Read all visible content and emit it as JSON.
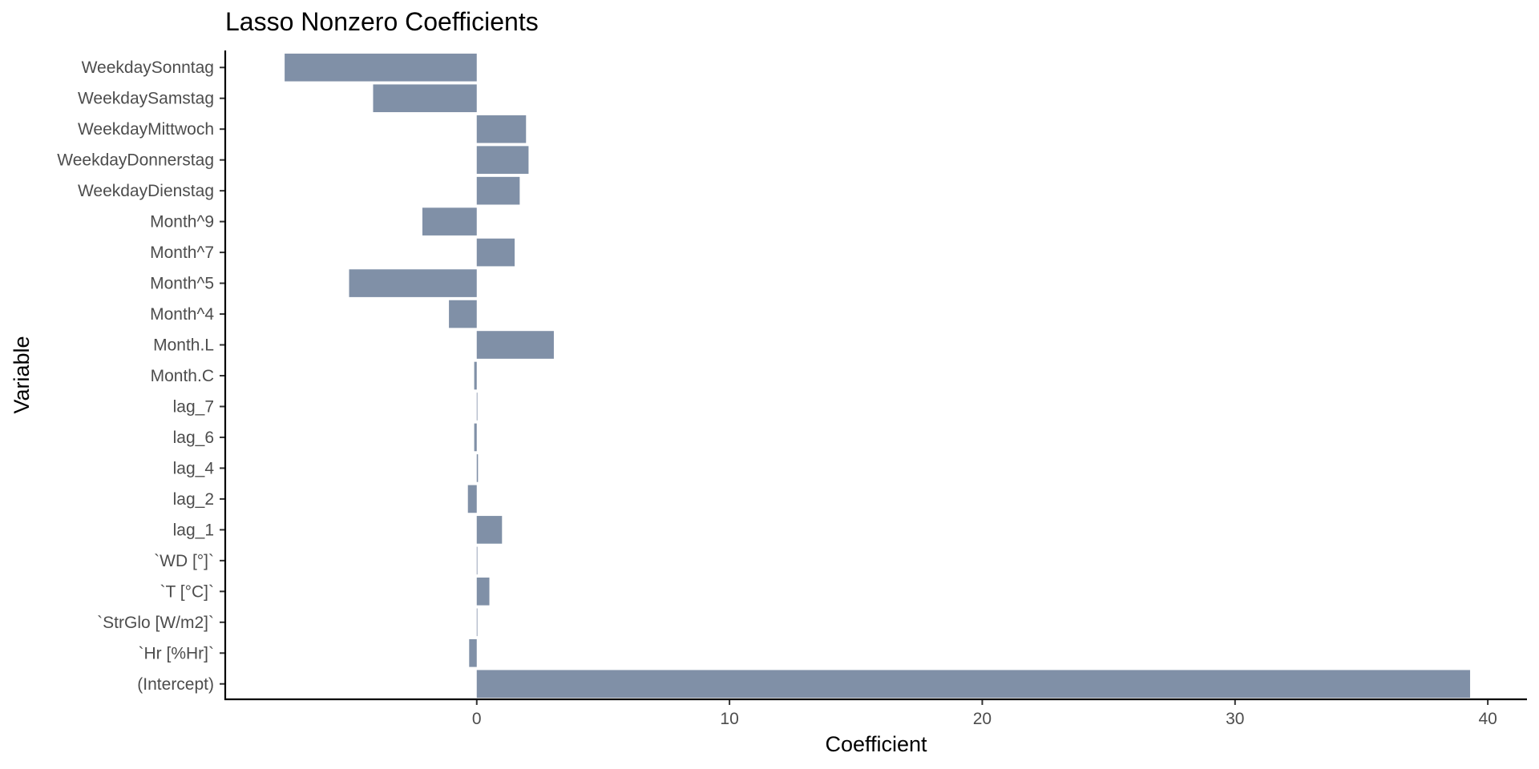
{
  "chart_data": {
    "type": "bar",
    "orientation": "horizontal",
    "title": "Lasso Nonzero Coefficients",
    "xlabel": "Coefficient",
    "ylabel": "Variable",
    "xlim": [
      -9.95,
      41.55
    ],
    "x_ticks": [
      0,
      10,
      20,
      30,
      40
    ],
    "grid": false,
    "legend": "none",
    "bar_color": "#8090a7",
    "categories": [
      "WeekdaySonntag",
      "WeekdaySamstag",
      "WeekdayMittwoch",
      "WeekdayDonnerstag",
      "WeekdayDienstag",
      "Month^9",
      "Month^7",
      "Month^5",
      "Month^4",
      "Month.L",
      "Month.C",
      "lag_7",
      "lag_6",
      "lag_4",
      "lag_2",
      "lag_1",
      "`WD [°]`",
      "`T [°C]`",
      "`StrGlo [W/m2]`",
      "`Hr [%Hr]`",
      "(Intercept)"
    ],
    "values": [
      -7.6,
      -4.1,
      1.95,
      2.05,
      1.7,
      -2.15,
      1.5,
      -5.05,
      -1.1,
      3.05,
      -0.1,
      0.02,
      -0.1,
      0.05,
      -0.35,
      1.0,
      0.01,
      0.5,
      0.01,
      -0.3,
      39.3
    ]
  }
}
